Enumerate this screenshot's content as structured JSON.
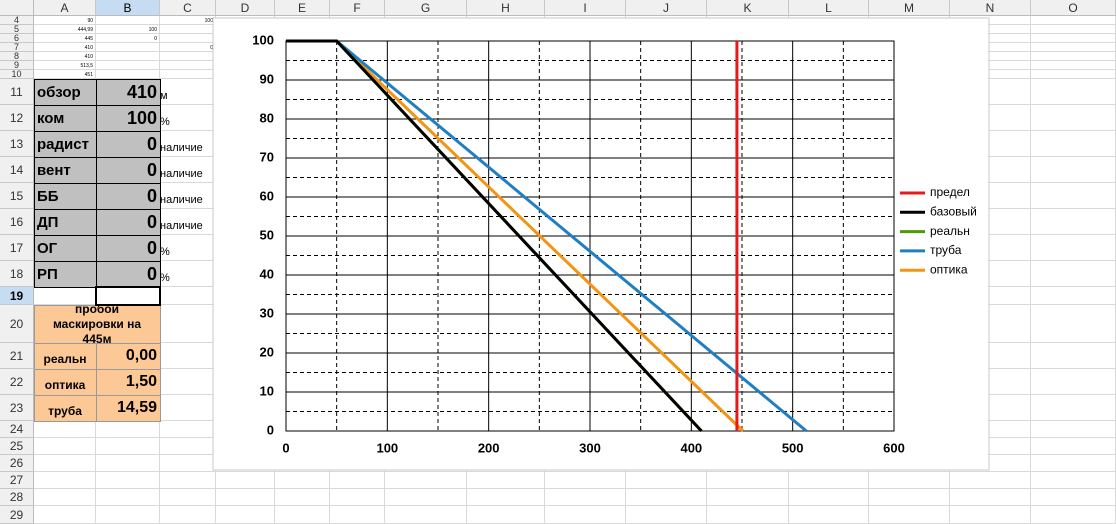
{
  "columns": [
    "A",
    "B",
    "C",
    "D",
    "E",
    "F",
    "G",
    "H",
    "I",
    "J",
    "K",
    "L",
    "M",
    "N",
    "O"
  ],
  "rows": [
    {
      "label": "4",
      "cells": [
        "90",
        null,
        "100"
      ]
    },
    {
      "label": "5",
      "cells": [
        "444,99",
        "100"
      ]
    },
    {
      "label": "6",
      "cells": [
        "445",
        "0"
      ]
    },
    {
      "label": "7",
      "cells": [
        "410",
        null,
        "0"
      ]
    },
    {
      "label": "8",
      "cells": [
        "410"
      ]
    },
    {
      "label": "9",
      "cells": [
        "513,5"
      ]
    },
    {
      "label": "10",
      "cells": [
        "451"
      ]
    },
    {
      "label": "11",
      "cells": [
        "обзор",
        "410",
        "м"
      ]
    },
    {
      "label": "12",
      "cells": [
        "ком",
        "100",
        "%"
      ]
    },
    {
      "label": "13",
      "cells": [
        "радист",
        "0",
        "наличие"
      ]
    },
    {
      "label": "14",
      "cells": [
        "вент",
        "0",
        "наличие"
      ]
    },
    {
      "label": "15",
      "cells": [
        "ББ",
        "0",
        "наличие"
      ]
    },
    {
      "label": "16",
      "cells": [
        "ДП",
        "0",
        "наличие"
      ]
    },
    {
      "label": "17",
      "cells": [
        "ОГ",
        "0",
        "%"
      ]
    },
    {
      "label": "18",
      "cells": [
        "РП",
        "0",
        "%"
      ]
    },
    {
      "label": "19",
      "cells": []
    },
    {
      "label": "20",
      "cells": [
        "пробой маскировки на 445м"
      ]
    },
    {
      "label": "21",
      "cells": [
        "реальн",
        "0,00"
      ]
    },
    {
      "label": "22",
      "cells": [
        "оптика",
        "1,50"
      ]
    },
    {
      "label": "23",
      "cells": [
        "труба",
        "14,59"
      ]
    },
    {
      "label": "24",
      "cells": []
    },
    {
      "label": "25",
      "cells": []
    },
    {
      "label": "26",
      "cells": []
    },
    {
      "label": "27",
      "cells": []
    },
    {
      "label": "28",
      "cells": []
    },
    {
      "label": "29",
      "cells": []
    }
  ],
  "chart_data": {
    "type": "line",
    "xlim": [
      0,
      600
    ],
    "xticks": [
      0,
      100,
      200,
      300,
      400,
      500,
      600
    ],
    "ylim": [
      0,
      100
    ],
    "yticks": [
      0,
      10,
      20,
      30,
      40,
      50,
      60,
      70,
      80,
      90,
      100
    ],
    "grid": true,
    "minor_grid": true,
    "legend": "right",
    "series": [
      {
        "name": "предел",
        "color": "#e8191b",
        "x": [
          445,
          445
        ],
        "values": [
          0,
          100
        ]
      },
      {
        "name": "базовый",
        "color": "#000000",
        "x": [
          0,
          50,
          410
        ],
        "values": [
          100,
          100,
          0
        ]
      },
      {
        "name": "реальн",
        "color": "#4e9a06",
        "x": [
          0,
          50,
          410
        ],
        "values": [
          100,
          100,
          0
        ]
      },
      {
        "name": "труба",
        "color": "#1f7fc4",
        "x": [
          0,
          50,
          513.5
        ],
        "values": [
          100,
          100,
          0
        ]
      },
      {
        "name": "оптика",
        "color": "#f39512",
        "x": [
          0,
          50,
          451
        ],
        "values": [
          100,
          100,
          0
        ]
      }
    ]
  }
}
